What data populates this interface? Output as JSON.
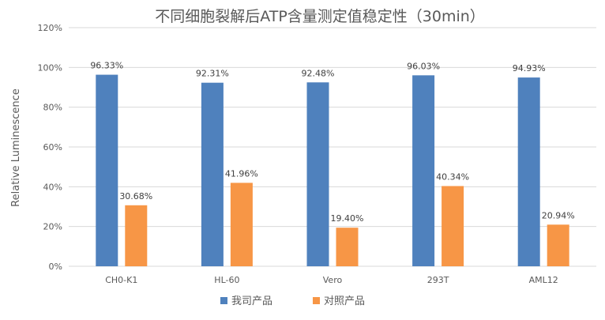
{
  "chart_data": {
    "type": "bar",
    "title": "不同细胞裂解后ATP含量测定值稳定性（30min）",
    "xlabel": "",
    "ylabel": "Relative  Luminescence",
    "categories": [
      "CH0-K1",
      "HL-60",
      "Vero",
      "293T",
      "AML12"
    ],
    "series": [
      {
        "name": "我司产品",
        "color": "#4f81bd",
        "values": [
          96.33,
          92.31,
          92.48,
          96.03,
          94.93
        ],
        "labels": [
          "96.33%",
          "92.31%",
          "92.48%",
          "96.03%",
          "94.93%"
        ]
      },
      {
        "name": "对照产品",
        "color": "#f79646",
        "values": [
          30.68,
          41.96,
          19.4,
          40.34,
          20.94
        ],
        "labels": [
          "30.68%",
          "41.96%",
          "19.40%",
          "40.34%",
          "20.94%"
        ]
      }
    ],
    "ylim": [
      0,
      120
    ],
    "yticks": [
      0,
      20,
      40,
      60,
      80,
      100,
      120
    ],
    "ytick_labels": [
      "0%",
      "20%",
      "40%",
      "60%",
      "80%",
      "100%",
      "120%"
    ],
    "grid": true,
    "legend_position": "bottom"
  }
}
